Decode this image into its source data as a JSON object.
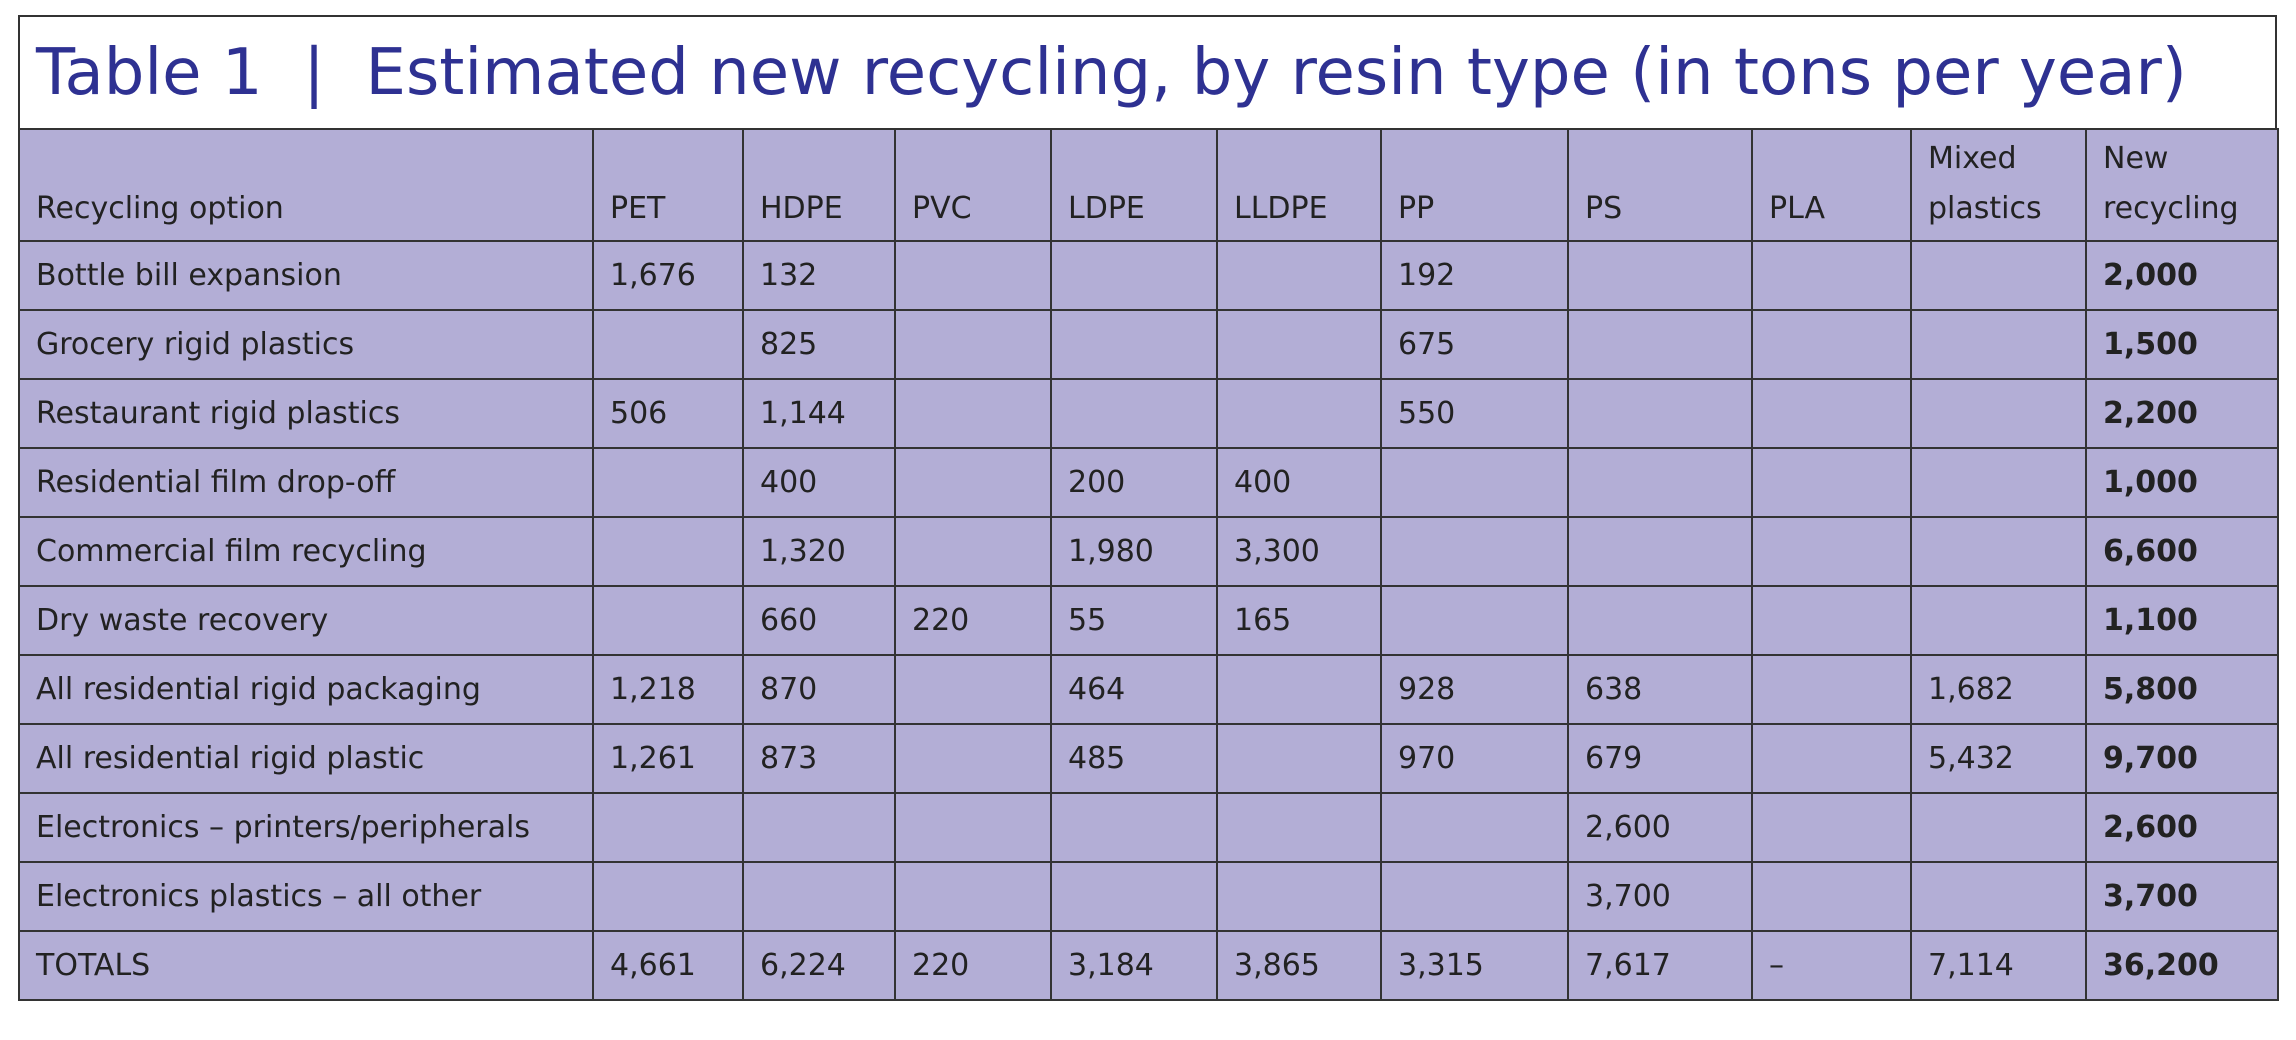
{
  "header": {
    "title": "Table 1  |  Estimated new recycling, by resin type (in tons per year)"
  },
  "table": {
    "columns": [
      "Recycling option",
      "PET",
      "HDPE",
      "PVC",
      "LDPE",
      "LLDPE",
      "PP",
      "PS",
      "PLA",
      "Mixed plastics",
      "New recycling"
    ],
    "rows": [
      [
        "Bottle bill expansion",
        "1,676",
        "132",
        null,
        null,
        null,
        "192",
        null,
        null,
        null,
        "2,000"
      ],
      [
        "Grocery rigid plastics",
        null,
        "825",
        null,
        null,
        null,
        "675",
        null,
        null,
        null,
        "1,500"
      ],
      [
        "Restaurant rigid plastics",
        "506",
        "1,144",
        null,
        null,
        null,
        "550",
        null,
        null,
        null,
        "2,200"
      ],
      [
        "Residential film drop-off",
        null,
        "400",
        null,
        "200",
        "400",
        null,
        null,
        null,
        null,
        "1,000"
      ],
      [
        "Commercial film recycling",
        null,
        "1,320",
        null,
        "1,980",
        "3,300",
        null,
        null,
        null,
        null,
        "6,600"
      ],
      [
        "Dry waste recovery",
        null,
        "660",
        "220",
        "55",
        "165",
        null,
        null,
        null,
        null,
        "1,100"
      ],
      [
        "All residential rigid packaging",
        "1,218",
        "870",
        null,
        "464",
        null,
        "928",
        "638",
        null,
        "1,682",
        "5,800"
      ],
      [
        "All residential rigid plastic",
        "1,261",
        "873",
        null,
        "485",
        null,
        "970",
        "679",
        null,
        "5,432",
        "9,700"
      ],
      [
        "Electronics – printers/peripherals",
        null,
        null,
        null,
        null,
        null,
        null,
        "2,600",
        null,
        null,
        "2,600"
      ],
      [
        "Electronics plastics – all other",
        null,
        null,
        null,
        null,
        null,
        null,
        "3,700",
        null,
        null,
        "3,700"
      ],
      [
        "TOTALS",
        "4,661",
        "6,224",
        "220",
        "3,184",
        "3,865",
        "3,315",
        "7,617",
        "–",
        "7,114",
        "36,200"
      ]
    ]
  }
}
